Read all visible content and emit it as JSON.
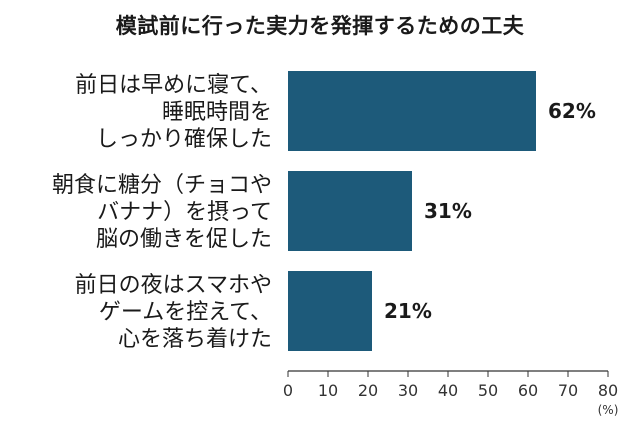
{
  "chart_data": {
    "type": "bar",
    "orientation": "horizontal",
    "title": "模試前に行った実力を発揮するための工夫",
    "categories": [
      [
        "前日は早めに寝て、",
        "睡眠時間を",
        "しっかり確保した"
      ],
      [
        "朝食に糖分（チョコや",
        "バナナ）を摂って",
        "脳の働きを促した"
      ],
      [
        "前日の夜はスマホや",
        "ゲームを控えて、",
        "心を落ち着けた"
      ]
    ],
    "values": [
      62,
      31,
      21
    ],
    "data_labels": [
      "62%",
      "31%",
      "21%"
    ],
    "xlim": [
      0,
      80
    ],
    "xticks": [
      0,
      10,
      20,
      30,
      40,
      50,
      60,
      70,
      80
    ],
    "unit_label": "(%)",
    "bar_color": "#1d5a7a",
    "grid": false
  }
}
